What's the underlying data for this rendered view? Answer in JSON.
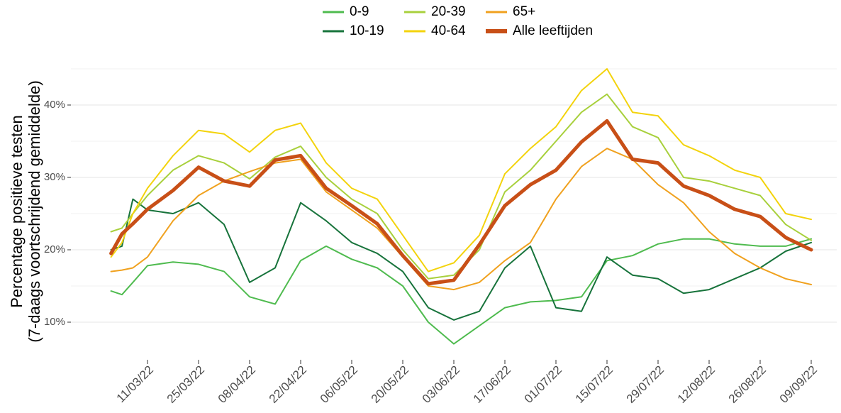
{
  "chart_data": {
    "type": "line",
    "ylabel": [
      "Percentage positieve testen",
      "(7-daags voortschrijdend gemiddelde)"
    ],
    "x": [
      "01/03/22",
      "04/03/22",
      "07/03/22",
      "11/03/22",
      "18/03/22",
      "25/03/22",
      "01/04/22",
      "08/04/22",
      "15/04/22",
      "22/04/22",
      "29/04/22",
      "06/05/22",
      "13/05/22",
      "20/05/22",
      "27/05/22",
      "03/06/22",
      "10/06/22",
      "17/06/22",
      "24/06/22",
      "01/07/22",
      "08/07/22",
      "15/07/22",
      "22/07/22",
      "29/07/22",
      "05/08/22",
      "12/08/22",
      "19/08/22",
      "26/08/22",
      "02/09/22",
      "09/09/22"
    ],
    "series": [
      {
        "name": "0-9",
        "color": "#4fbb4f",
        "width": 2,
        "values": [
          14.3,
          13.8,
          15.5,
          17.8,
          18.3,
          18.0,
          17.0,
          13.5,
          12.5,
          18.5,
          20.5,
          18.7,
          17.5,
          15.0,
          10.0,
          7.0,
          9.5,
          12.0,
          12.8,
          13.0,
          13.5,
          18.5,
          19.2,
          20.8,
          21.5,
          21.5,
          20.8,
          20.5,
          20.5,
          21.5
        ]
      },
      {
        "name": "10-19",
        "color": "#17733b",
        "width": 2,
        "values": [
          20.0,
          20.5,
          27.0,
          25.5,
          25.0,
          26.5,
          23.5,
          15.5,
          17.5,
          26.5,
          24.0,
          21.0,
          19.5,
          17.0,
          12.0,
          10.3,
          11.5,
          17.5,
          20.5,
          12.0,
          11.5,
          19.0,
          16.5,
          16.0,
          14.0,
          14.5,
          16.0,
          17.5,
          19.8,
          21.0
        ]
      },
      {
        "name": "20-39",
        "color": "#a8d03c",
        "width": 2,
        "values": [
          22.5,
          23.0,
          25.0,
          27.5,
          31.0,
          33.0,
          32.0,
          29.8,
          32.8,
          34.3,
          30.0,
          27.0,
          25.0,
          20.0,
          16.0,
          16.5,
          20.0,
          28.0,
          31.0,
          35.0,
          39.0,
          41.5,
          37.0,
          35.5,
          30.0,
          29.5,
          28.5,
          27.5,
          23.5,
          21.3
        ]
      },
      {
        "name": "40-64",
        "color": "#f3d30c",
        "width": 2,
        "values": [
          19.0,
          21.0,
          25.0,
          28.5,
          33.0,
          36.5,
          36.0,
          33.5,
          36.5,
          37.5,
          32.0,
          28.5,
          27.0,
          22.0,
          17.0,
          18.2,
          22.0,
          30.5,
          34.0,
          37.0,
          42.0,
          45.0,
          39.0,
          38.5,
          34.5,
          33.0,
          31.0,
          30.0,
          25.0,
          24.2
        ]
      },
      {
        "name": "65+",
        "color": "#f0a11e",
        "width": 2,
        "values": [
          17.0,
          17.2,
          17.5,
          19.0,
          24.0,
          27.5,
          29.5,
          30.8,
          32.0,
          32.5,
          28.0,
          25.5,
          23.0,
          19.0,
          15.0,
          14.5,
          15.5,
          18.5,
          21.0,
          27.0,
          31.5,
          34.0,
          32.5,
          29.0,
          26.5,
          22.5,
          19.5,
          17.5,
          16.0,
          15.2
        ]
      },
      {
        "name": "Alle leeftijden",
        "color": "#c84f17",
        "width": 5,
        "values": [
          19.5,
          22.2,
          23.6,
          25.6,
          28.2,
          31.4,
          29.5,
          28.8,
          32.4,
          33.0,
          28.5,
          26.1,
          23.6,
          19.2,
          15.3,
          15.8,
          20.7,
          26.1,
          29.0,
          31.0,
          34.9,
          37.8,
          32.5,
          32.0,
          28.8,
          27.5,
          25.6,
          24.6,
          21.7,
          20.0
        ]
      }
    ],
    "xlim": [
      "18/02/22",
      "16/09/22"
    ],
    "xticks": [
      "11/03/22",
      "25/03/22",
      "08/04/22",
      "22/04/22",
      "06/05/22",
      "20/05/22",
      "03/06/22",
      "17/06/22",
      "01/07/22",
      "15/07/22",
      "29/07/22",
      "12/08/22",
      "26/08/22",
      "09/09/22"
    ],
    "ylim": [
      5,
      45.5
    ],
    "yticks": [
      {
        "value": 10,
        "label": "10%"
      },
      {
        "value": 20,
        "label": "20%"
      },
      {
        "value": 30,
        "label": "30%"
      },
      {
        "value": 40,
        "label": "40%"
      }
    ],
    "yminor": [
      15,
      25,
      35,
      45
    ],
    "grid": true,
    "legend": "top"
  }
}
